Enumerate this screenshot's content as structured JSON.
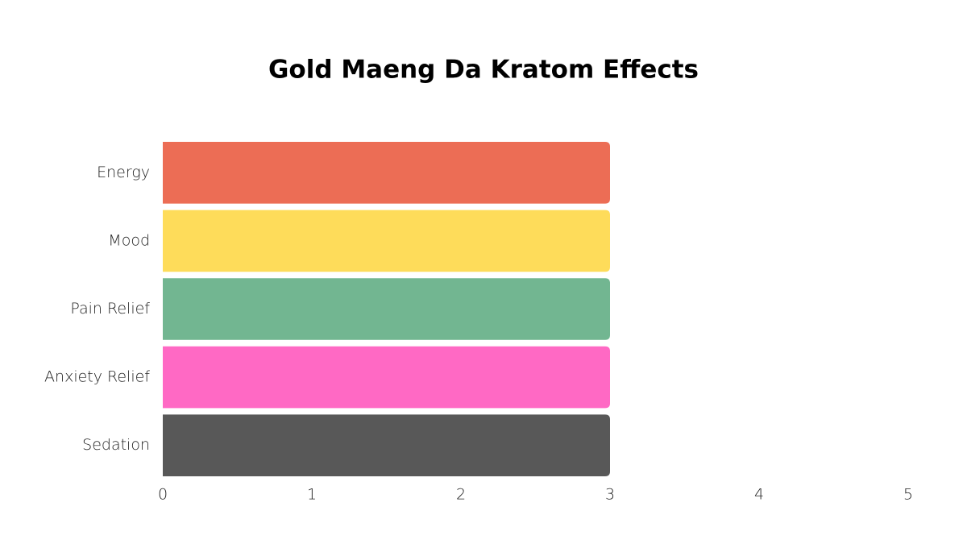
{
  "chart_data": {
    "type": "bar",
    "orientation": "horizontal",
    "title": "Gold Maeng Da Kratom Effects",
    "categories": [
      "Energy",
      "Mood",
      "Pain Relief",
      "Anxiety Relief",
      "Sedation"
    ],
    "values": [
      3,
      3,
      3,
      3,
      3
    ],
    "colors": [
      "#ec6d55",
      "#fedc5a",
      "#72b691",
      "#ff69c4",
      "#585858"
    ],
    "xlim": [
      0,
      5
    ],
    "xticks": [
      0,
      1,
      2,
      3,
      4,
      5
    ],
    "grid": false
  }
}
